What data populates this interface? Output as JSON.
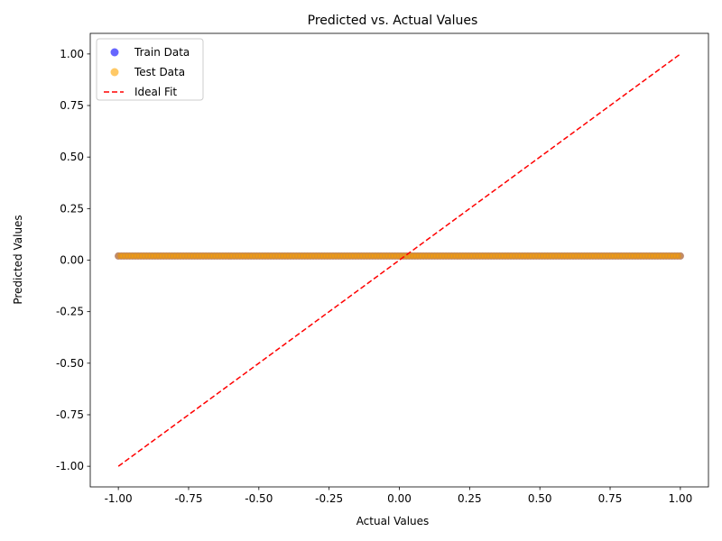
{
  "chart_data": {
    "type": "scatter",
    "title": "Predicted vs. Actual Values",
    "xlabel": "Actual Values",
    "ylabel": "Predicted Values",
    "xlim": [
      -1.1,
      1.1
    ],
    "ylim": [
      -1.1,
      1.1
    ],
    "xticks": [
      -1.0,
      -0.75,
      -0.5,
      -0.25,
      0.0,
      0.25,
      0.5,
      0.75,
      1.0
    ],
    "xtick_labels": [
      "-1.00",
      "-0.75",
      "-0.50",
      "-0.25",
      "0.00",
      "0.25",
      "0.50",
      "0.75",
      "1.00"
    ],
    "yticks": [
      -1.0,
      -0.75,
      -0.5,
      -0.25,
      0.0,
      0.25,
      0.5,
      0.75,
      1.0
    ],
    "ytick_labels": [
      "-1.00",
      "-0.75",
      "-0.50",
      "-0.25",
      "0.00",
      "0.25",
      "0.50",
      "0.75",
      "1.00"
    ],
    "grid": false,
    "legend_position": "upper-left",
    "series": [
      {
        "name": "Train Data",
        "kind": "scatter",
        "color": "#0000ff",
        "opacity": 0.6,
        "x_range": [
          -1.0,
          1.0
        ],
        "y_value": 0.02
      },
      {
        "name": "Test Data",
        "kind": "scatter",
        "color": "#ffa500",
        "opacity": 0.6,
        "x_range": [
          -1.0,
          1.0
        ],
        "y_value": 0.02
      },
      {
        "name": "Ideal Fit",
        "kind": "line",
        "style": "dashed",
        "color": "#ff0000",
        "x": [
          -1.0,
          1.0
        ],
        "y": [
          -1.0,
          1.0
        ]
      }
    ]
  }
}
